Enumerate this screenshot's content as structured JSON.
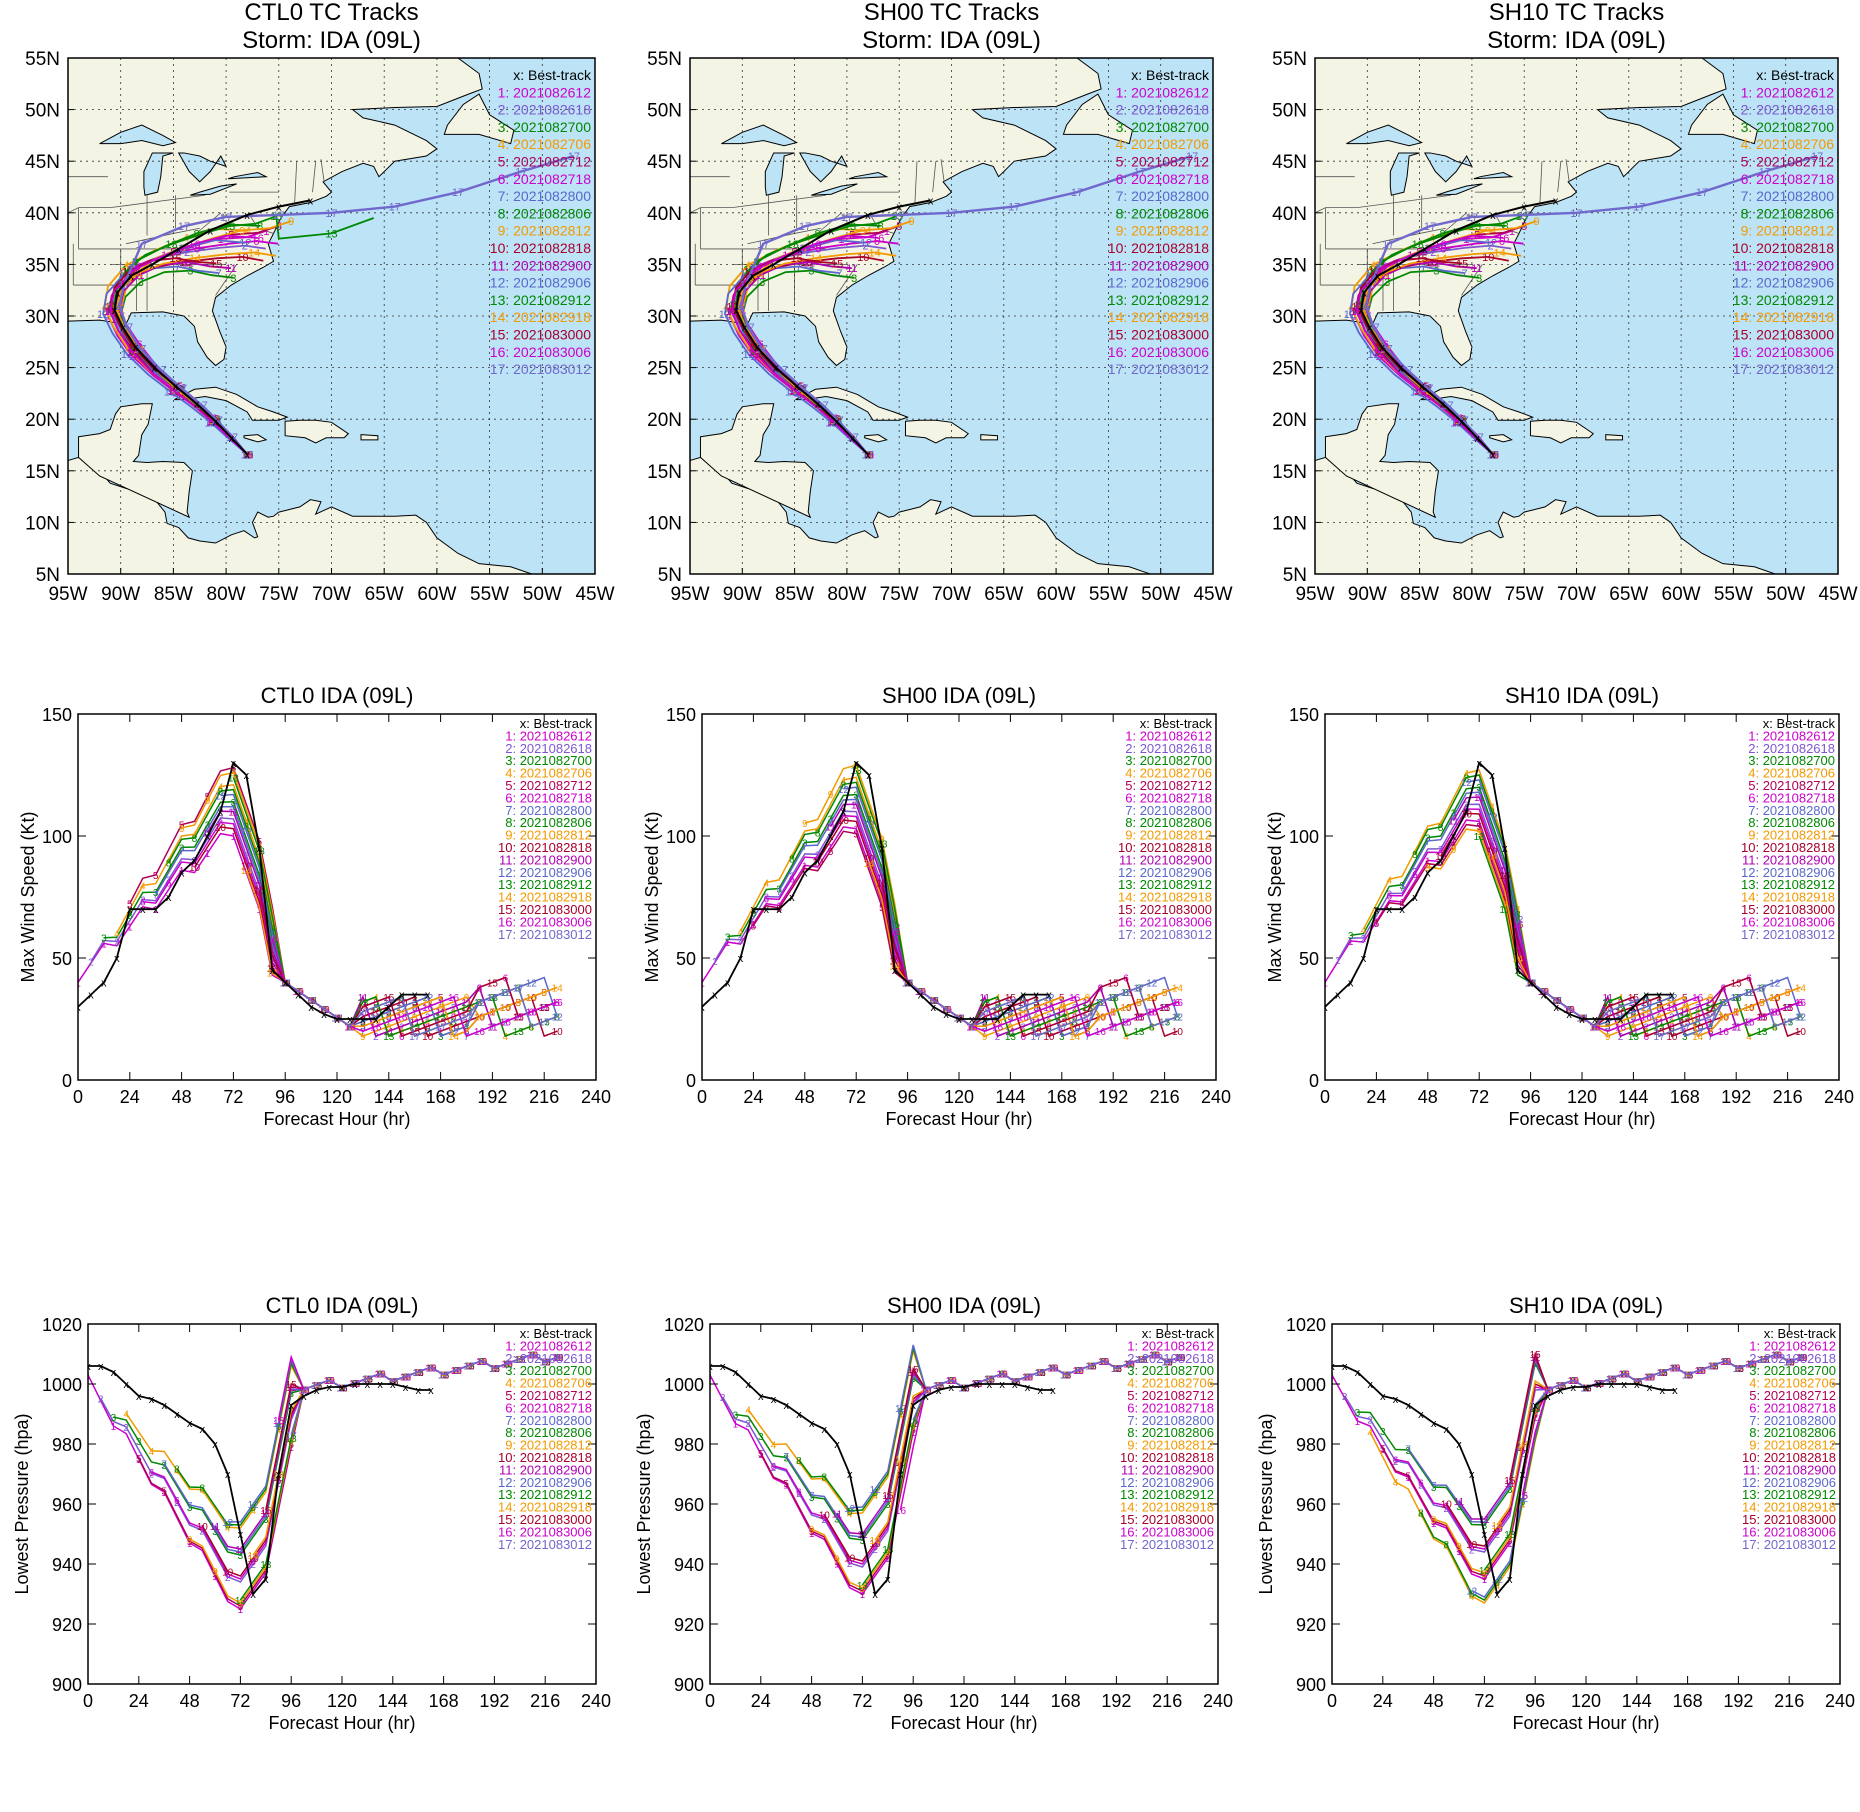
{
  "colors": {
    "best": "#000000",
    "ocean": "#bde3f7",
    "land": "#f3f4e4",
    "members": [
      "#cc00cc",
      "#7d57d1",
      "#008800",
      "#f29a00",
      "#b00055",
      "#cc00cc",
      "#5a67cc",
      "#008800",
      "#f29a00",
      "#a8002a",
      "#b000b0",
      "#5a67cc",
      "#008800",
      "#f29a00",
      "#a8002a",
      "#cc00cc",
      "#7068cc"
    ]
  },
  "legend": {
    "best_track": "x: Best-track",
    "members": [
      "1: 2021082612",
      "2: 2021082618",
      "3: 2021082700",
      "4: 2021082706",
      "5: 2021082712",
      "6: 2021082718",
      "7: 2021082800",
      "8: 2021082806",
      "9: 2021082812",
      "10: 2021082818",
      "11: 2021082900",
      "12: 2021082906",
      "13: 2021082912",
      "14: 2021082918",
      "15: 2021083000",
      "16: 2021083006",
      "17: 2021083012"
    ]
  },
  "map_panels": [
    {
      "title_line1": "CTL0 TC Tracks",
      "title_line2": "Storm: IDA (09L)"
    },
    {
      "title_line1": "SH00 TC Tracks",
      "title_line2": "Storm: IDA (09L)"
    },
    {
      "title_line1": "SH10 TC Tracks",
      "title_line2": "Storm: IDA (09L)"
    }
  ],
  "map_axes": {
    "lon_ticks": [
      "95W",
      "90W",
      "85W",
      "80W",
      "75W",
      "70W",
      "65W",
      "60W",
      "55W",
      "50W",
      "45W"
    ],
    "lat_ticks": [
      "55N",
      "50N",
      "45N",
      "40N",
      "35N",
      "30N",
      "25N",
      "20N",
      "15N",
      "10N",
      "5N"
    ],
    "lon_range": [
      -95,
      -45
    ],
    "lat_range": [
      5,
      55
    ]
  },
  "intensity_panels": [
    {
      "title": "CTL0  IDA (09L)"
    },
    {
      "title": "SH00  IDA (09L)"
    },
    {
      "title": "SH10  IDA (09L)"
    }
  ],
  "pressure_panels": [
    {
      "title": "CTL0  IDA (09L)"
    },
    {
      "title": "SH00  IDA (09L)"
    },
    {
      "title": "SH10  IDA (09L)"
    }
  ],
  "axes": {
    "forecast_xlabel": "Forecast Hour (hr)",
    "wind_ylabel": "Max Wind Speed (Kt)",
    "pressure_ylabel": "Lowest Pressure (hpa)",
    "x_ticks": [
      "0",
      "24",
      "48",
      "72",
      "96",
      "120",
      "144",
      "168",
      "192",
      "216",
      "240"
    ],
    "wind_ticks": [
      "0",
      "50",
      "100",
      "150"
    ],
    "pressure_ticks": [
      "900",
      "920",
      "940",
      "960",
      "980",
      "1000",
      "1020"
    ]
  },
  "chart_data": [
    {
      "type": "line",
      "chart": "max_wind",
      "xlim": [
        0,
        240
      ],
      "ylim": [
        0,
        150
      ],
      "best_track": {
        "x": [
          0,
          6,
          12,
          18,
          24,
          30,
          36,
          42,
          48,
          54,
          60,
          66,
          72,
          78,
          84,
          90,
          96,
          102,
          108,
          114,
          120,
          126,
          132,
          138,
          144,
          150,
          156,
          162
        ],
        "y": [
          30,
          35,
          40,
          50,
          70,
          70,
          70,
          75,
          85,
          90,
          100,
          110,
          130,
          125,
          95,
          45,
          40,
          35,
          30,
          27,
          25,
          25,
          25,
          25,
          30,
          35,
          35,
          35
        ]
      }
    },
    {
      "type": "line",
      "chart": "lowest_pressure",
      "xlim": [
        0,
        240
      ],
      "ylim": [
        900,
        1020
      ],
      "best_track": {
        "x": [
          0,
          6,
          12,
          18,
          24,
          30,
          36,
          42,
          48,
          54,
          60,
          66,
          72,
          78,
          84,
          90,
          96,
          102,
          108,
          114,
          120,
          126,
          132,
          138,
          144,
          150,
          156,
          162
        ],
        "y": [
          1006,
          1006,
          1004,
          1000,
          996,
          995,
          993,
          990,
          987,
          985,
          980,
          970,
          950,
          930,
          935,
          970,
          993,
          996,
          998,
          999,
          999,
          1000,
          1000,
          1000,
          1000,
          999,
          998,
          998
        ]
      }
    }
  ]
}
